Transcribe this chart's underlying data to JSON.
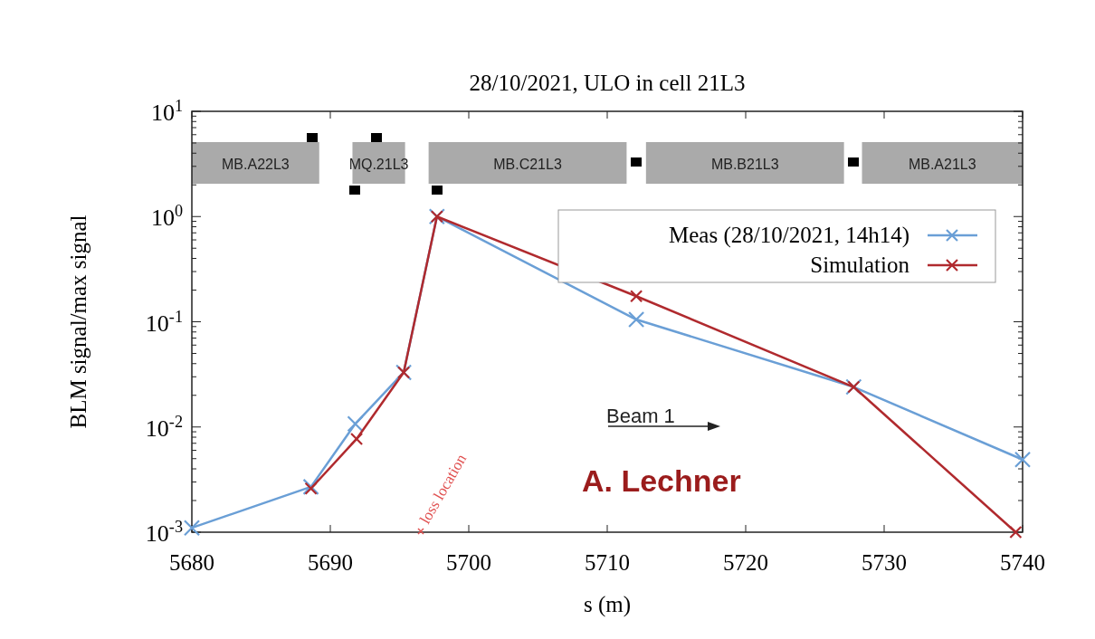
{
  "chart_data": {
    "type": "line",
    "title": "28/10/2021, ULO in cell 21L3",
    "xlabel": "s (m)",
    "ylabel": "BLM signal/max signal",
    "log": "y",
    "xlim": [
      5680,
      5740
    ],
    "xticks": [
      5680,
      5690,
      5700,
      5710,
      5720,
      5730,
      5740
    ],
    "ylim": [
      0.001,
      10
    ],
    "yticks": [
      {
        "value": 0.001,
        "label": "10$^{-3}$"
      },
      {
        "value": 0.01,
        "label": "10$^{-2}$"
      },
      {
        "value": 0.1,
        "label": "10$^{-1}$"
      },
      {
        "value": 1,
        "label": "10$^{0}$"
      },
      {
        "value": 10,
        "label": "10$^{1}$"
      }
    ],
    "grid": false,
    "legend": "top right",
    "marker": "cross",
    "line_style": "solid",
    "series": [
      {
        "name": "Meas (28/10/2021, 14h14)",
        "color": "#6a9fd6",
        "x": [
          5680,
          5688.6,
          5691.8,
          5695.3,
          5697.7,
          5712.1,
          5727.8,
          5740
        ],
        "values": [
          0.0011,
          0.0027,
          0.0107,
          0.033,
          1.0,
          0.105,
          0.024,
          0.0049
        ]
      },
      {
        "name": "Simulation",
        "color": "#b02a2e",
        "x": [
          5688.6,
          5691.9,
          5695.3,
          5697.7,
          5712.1,
          5727.8,
          5739.5
        ],
        "values": [
          0.0026,
          0.0077,
          0.033,
          1.0,
          0.175,
          0.024,
          0.001
        ]
      }
    ],
    "bands": [
      {
        "axis": "x",
        "from": 5680,
        "to": 5689.2,
        "label": "MB.A22L3",
        "color": "#aaaaaa"
      },
      {
        "axis": "x",
        "from": 5691.6,
        "to": 5695.4,
        "label": "MQ.21L3",
        "color": "#aaaaaa"
      },
      {
        "axis": "x",
        "from": 5697.1,
        "to": 5711.4,
        "label": "MB.C21L3",
        "color": "#aaaaaa"
      },
      {
        "axis": "x",
        "from": 5712.8,
        "to": 5727.1,
        "label": "MB.B21L3",
        "color": "#aaaaaa"
      },
      {
        "axis": "x",
        "from": 5728.4,
        "to": 5740,
        "label": "MB.A21L3",
        "color": "#aaaaaa"
      }
    ],
    "annotations": [
      "Beam 1",
      "loss location",
      "A. Lechner"
    ]
  }
}
